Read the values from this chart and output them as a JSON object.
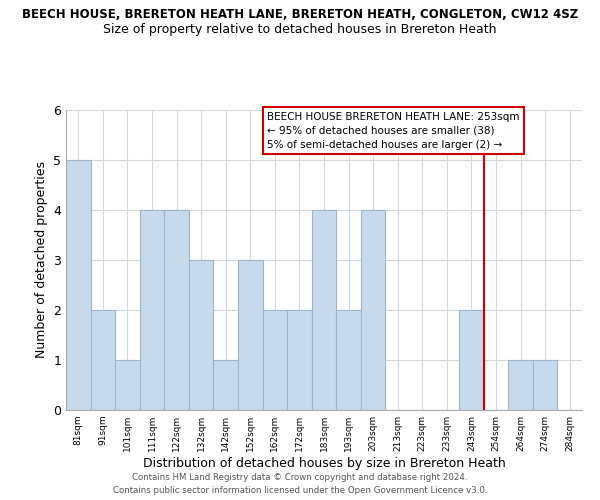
{
  "title": "BEECH HOUSE, BRERETON HEATH LANE, BRERETON HEATH, CONGLETON, CW12 4SZ",
  "subtitle": "Size of property relative to detached houses in Brereton Heath",
  "xlabel": "Distribution of detached houses by size in Brereton Heath",
  "ylabel": "Number of detached properties",
  "bin_labels": [
    "81sqm",
    "91sqm",
    "101sqm",
    "111sqm",
    "122sqm",
    "132sqm",
    "142sqm",
    "152sqm",
    "162sqm",
    "172sqm",
    "183sqm",
    "193sqm",
    "203sqm",
    "213sqm",
    "223sqm",
    "233sqm",
    "243sqm",
    "254sqm",
    "264sqm",
    "274sqm",
    "284sqm"
  ],
  "bin_counts": [
    5,
    2,
    1,
    4,
    4,
    3,
    1,
    3,
    2,
    2,
    4,
    2,
    4,
    0,
    0,
    0,
    2,
    0,
    1,
    1,
    0
  ],
  "bar_color": "#c8d9eb",
  "bar_edge_color": "#9ab5cc",
  "vline_color": "#cc0000",
  "vline_x_index": 16,
  "annotation_title": "BEECH HOUSE BRERETON HEATH LANE: 253sqm",
  "annotation_line2": "← 95% of detached houses are smaller (38)",
  "annotation_line3": "5% of semi-detached houses are larger (2) →",
  "annotation_box_color": "#cc0000",
  "ylim": [
    0,
    6
  ],
  "yticks": [
    0,
    1,
    2,
    3,
    4,
    5,
    6
  ],
  "grid_color": "#d0d8e0",
  "footer1": "Contains HM Land Registry data © Crown copyright and database right 2024.",
  "footer2": "Contains public sector information licensed under the Open Government Licence v3.0."
}
